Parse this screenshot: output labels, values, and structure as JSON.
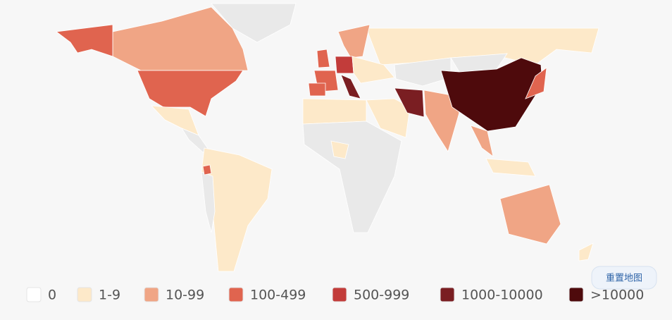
{
  "legend": {
    "items": [
      {
        "label": "0",
        "color": "#ffffff"
      },
      {
        "label": "1-9",
        "color": "#fde9c9"
      },
      {
        "label": "10-99",
        "color": "#f0a585"
      },
      {
        "label": "100-499",
        "color": "#e0644f"
      },
      {
        "label": "500-999",
        "color": "#c23c3a"
      },
      {
        "label": "1000-10000",
        "color": "#7a1e22"
      },
      {
        "label": ">10000",
        "color": "#4e0a0c"
      }
    ]
  },
  "reset_button": {
    "label": "重置地图"
  }
}
